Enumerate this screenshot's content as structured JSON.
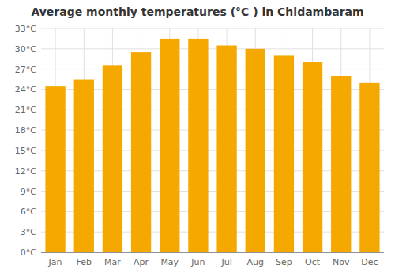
{
  "chart_data": {
    "type": "bar",
    "title": "Average monthly temperatures (°C ) in Chidambaram",
    "categories": [
      "Jan",
      "Feb",
      "Mar",
      "Apr",
      "May",
      "Jun",
      "Jul",
      "Aug",
      "Sep",
      "Oct",
      "Nov",
      "Dec"
    ],
    "values": [
      24.5,
      25.5,
      27.5,
      29.5,
      31.5,
      31.5,
      30.5,
      30.0,
      29.0,
      28.0,
      26.0,
      25.0
    ],
    "color": "#F5A800",
    "ylim": [
      0,
      33
    ],
    "yticks": [
      {
        "value": 0,
        "label": "0°C"
      },
      {
        "value": 3,
        "label": "3°C"
      },
      {
        "value": 6,
        "label": "6°C"
      },
      {
        "value": 9,
        "label": "9°C"
      },
      {
        "value": 12,
        "label": "12°C"
      },
      {
        "value": 15,
        "label": "15°C"
      },
      {
        "value": 18,
        "label": "18°C"
      },
      {
        "value": 21,
        "label": "21°C"
      },
      {
        "value": 24,
        "label": "24°C"
      },
      {
        "value": 27,
        "label": "27°C"
      },
      {
        "value": 30,
        "label": "30°C"
      },
      {
        "value": 33,
        "label": "33°C"
      }
    ],
    "grid": true
  }
}
